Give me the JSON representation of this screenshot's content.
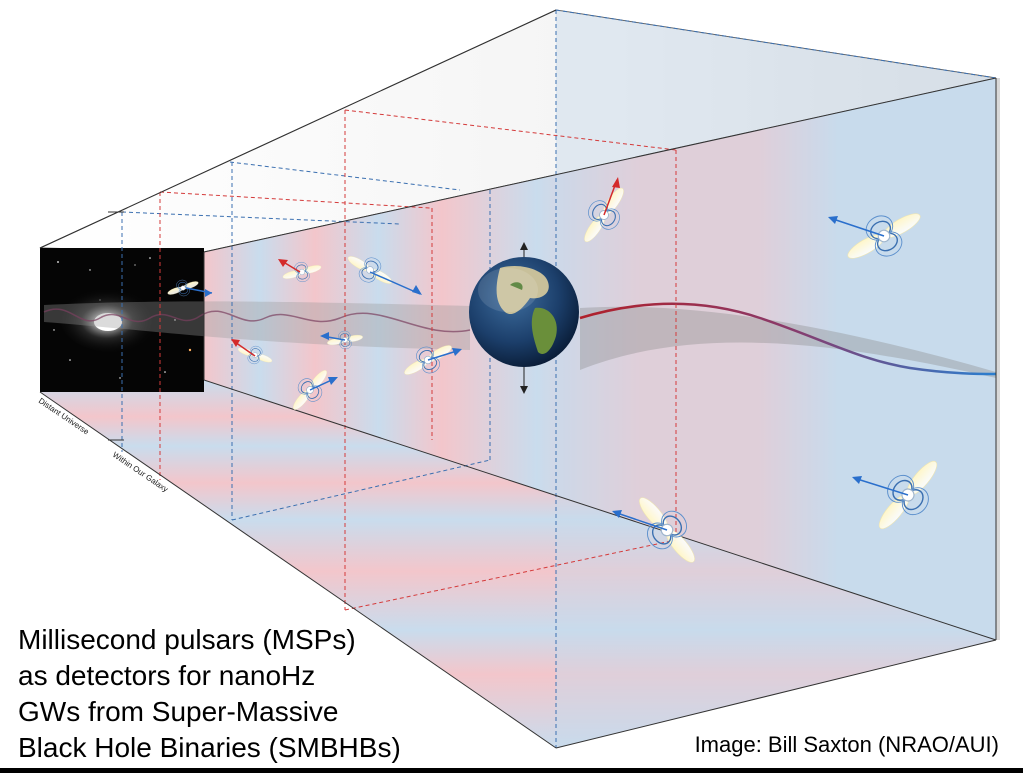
{
  "caption": {
    "lines": [
      "Millisecond pulsars (MSPs)",
      "as detectors for nanoHz",
      "GWs from Super-Massive",
      "Black Hole Binaries  (SMBHBs)"
    ]
  },
  "credit": "Image: Bill Saxton (NRAO/AUI)",
  "labels": {
    "distant_universe": "Distant Universe",
    "within_galaxy": "Within Our Galaxy"
  },
  "colors": {
    "pink": "#f3c6cb",
    "blue": "#c9dced",
    "wave_red": "#b0202a",
    "wave_blue": "#2a7fd0",
    "arrow_red": "#d42a2a",
    "arrow_blue": "#2a6fcc"
  },
  "icons": [
    "earth-icon",
    "pulsar-icon",
    "galaxy-icon"
  ]
}
